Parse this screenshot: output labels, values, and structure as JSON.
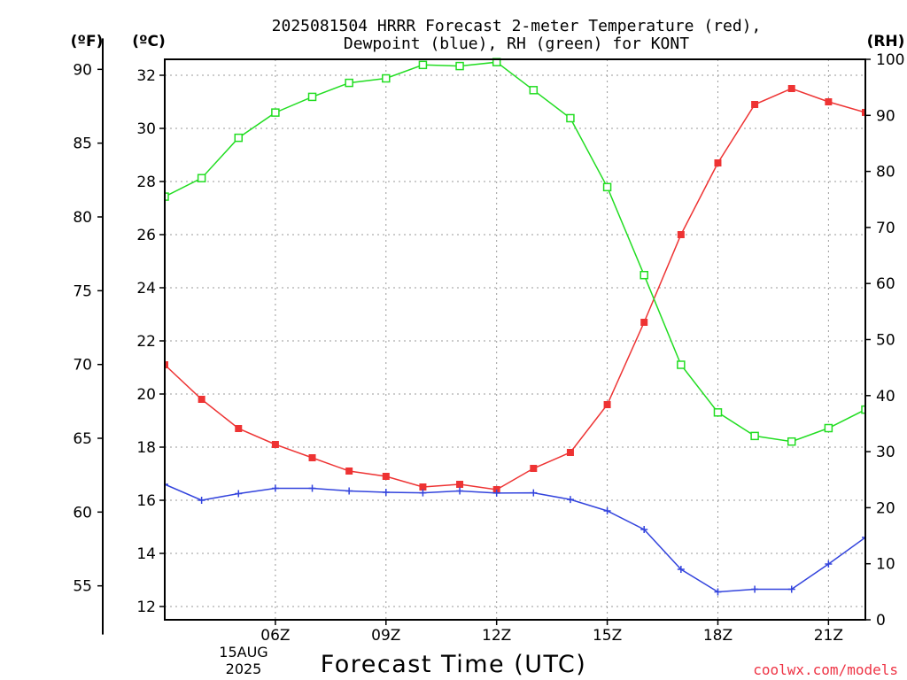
{
  "chart_data": {
    "type": "line",
    "title_line1": "2025081504 HRRR Forecast 2-meter Temperature (red),",
    "title_line2": "Dewpoint (blue), RH (green) for KONT",
    "xlabel": "Forecast Time (UTC)",
    "watermark": "coolwx.com/models",
    "unit_f": "(ºF)",
    "unit_c": "(ºC)",
    "unit_rh": "(RH)",
    "date_label_day": "15AUG",
    "date_label_year": "2025",
    "hours": [
      3,
      4,
      5,
      6,
      7,
      8,
      9,
      10,
      11,
      12,
      13,
      14,
      15,
      16,
      17,
      18,
      19,
      20,
      21,
      22
    ],
    "x_range_hours": [
      3,
      22
    ],
    "x_tick_hours": [
      6,
      9,
      12,
      15,
      18,
      21
    ],
    "x_tick_labels": [
      "06Z",
      "09Z",
      "12Z",
      "15Z",
      "18Z",
      "21Z"
    ],
    "c_range": [
      11.5,
      32.6
    ],
    "c_ticks": [
      12,
      14,
      16,
      18,
      20,
      22,
      24,
      26,
      28,
      30,
      32
    ],
    "f_ticks": [
      55,
      60,
      65,
      70,
      75,
      80,
      85,
      90
    ],
    "rh_range": [
      0,
      100
    ],
    "rh_ticks": [
      0,
      10,
      20,
      30,
      40,
      50,
      60,
      70,
      80,
      90,
      100
    ],
    "grid": true,
    "series": [
      {
        "name": "Temperature",
        "axis": "c",
        "color": "#ee3333",
        "marker": "filled-square",
        "values": [
          21.1,
          19.8,
          18.7,
          18.1,
          17.6,
          17.1,
          16.9,
          16.5,
          16.6,
          16.4,
          17.2,
          17.8,
          19.6,
          22.7,
          26.0,
          28.7,
          30.9,
          31.5,
          31.0,
          30.6
        ]
      },
      {
        "name": "Dewpoint",
        "axis": "c",
        "color": "#3344dd",
        "marker": "plus",
        "values": [
          16.6,
          16.0,
          16.25,
          16.45,
          16.45,
          16.35,
          16.3,
          16.28,
          16.35,
          16.27,
          16.28,
          16.03,
          15.6,
          14.9,
          13.4,
          12.55,
          12.65,
          12.65,
          13.6,
          14.6
        ]
      },
      {
        "name": "RH",
        "axis": "rh",
        "color": "#22dd22",
        "marker": "open-square",
        "values": [
          75.5,
          78.8,
          86.0,
          90.5,
          93.3,
          95.8,
          96.6,
          99.0,
          98.8,
          99.5,
          94.5,
          89.5,
          77.2,
          61.5,
          45.5,
          37.0,
          32.8,
          31.8,
          34.2,
          37.5
        ]
      }
    ]
  }
}
